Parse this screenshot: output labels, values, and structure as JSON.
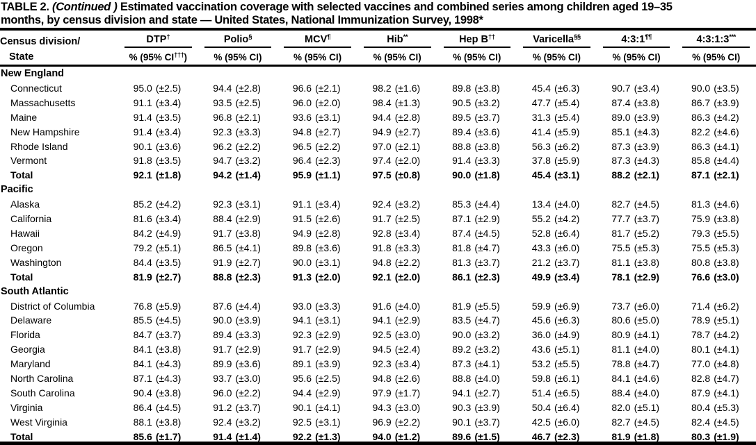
{
  "title": {
    "prefix": "TABLE 2. ",
    "continued": "(Continued )",
    "line1_rest": " Estimated vaccination coverage with selected vaccines and combined series among children aged 19–35",
    "line2": "months, by census division and state — United States, National Immunization Survey, 1998*"
  },
  "header": {
    "col1_line1": "Census division/",
    "col1_line2": "State",
    "columns": [
      {
        "label": "DTP",
        "sup": "†",
        "sub": "% (95% CI",
        "sub_sup": "†††",
        "sub_close": ")"
      },
      {
        "label": "Polio",
        "sup": "§",
        "sub": "% (95% CI",
        "sub_sup": "",
        "sub_close": ")"
      },
      {
        "label": "MCV",
        "sup": "¶",
        "sub": "% (95% CI",
        "sub_sup": "",
        "sub_close": ")"
      },
      {
        "label": "Hib",
        "sup": "**",
        "sub": "% (95% CI",
        "sub_sup": "",
        "sub_close": ")"
      },
      {
        "label": "Hep B",
        "sup": "††",
        "sub": "% (95% CI",
        "sub_sup": "",
        "sub_close": ")"
      },
      {
        "label": "Varicella",
        "sup": "§§",
        "sub": "% (95% CI",
        "sub_sup": "",
        "sub_close": ")"
      },
      {
        "label": "4:3:1",
        "sup": "¶¶",
        "sub": "% (95% CI",
        "sub_sup": "",
        "sub_close": ")"
      },
      {
        "label": "4:3:1:3",
        "sup": "***",
        "sub": "% (95% CI",
        "sub_sup": "",
        "sub_close": ")"
      }
    ]
  },
  "table": {
    "sections": [
      {
        "name": "New England",
        "rows": [
          {
            "state": "Connecticut",
            "total": false,
            "cells": [
              [
                "95.0",
                "(±2.5)"
              ],
              [
                "94.4",
                "(±2.8)"
              ],
              [
                "96.6",
                "(±2.1)"
              ],
              [
                "98.2",
                "(±1.6)"
              ],
              [
                "89.8",
                "(±3.8)"
              ],
              [
                "45.4",
                "(±6.3)"
              ],
              [
                "90.7",
                "(±3.4)"
              ],
              [
                "90.0",
                "(±3.5)"
              ]
            ]
          },
          {
            "state": "Massachusetts",
            "total": false,
            "cells": [
              [
                "91.1",
                "(±3.4)"
              ],
              [
                "93.5",
                "(±2.5)"
              ],
              [
                "96.0",
                "(±2.0)"
              ],
              [
                "98.4",
                "(±1.3)"
              ],
              [
                "90.5",
                "(±3.2)"
              ],
              [
                "47.7",
                "(±5.4)"
              ],
              [
                "87.4",
                "(±3.8)"
              ],
              [
                "86.7",
                "(±3.9)"
              ]
            ]
          },
          {
            "state": "Maine",
            "total": false,
            "cells": [
              [
                "91.4",
                "(±3.5)"
              ],
              [
                "96.8",
                "(±2.1)"
              ],
              [
                "93.6",
                "(±3.1)"
              ],
              [
                "94.4",
                "(±2.8)"
              ],
              [
                "89.5",
                "(±3.7)"
              ],
              [
                "31.3",
                "(±5.4)"
              ],
              [
                "89.0",
                "(±3.9)"
              ],
              [
                "86.3",
                "(±4.2)"
              ]
            ]
          },
          {
            "state": "New Hampshire",
            "total": false,
            "cells": [
              [
                "91.4",
                "(±3.4)"
              ],
              [
                "92.3",
                "(±3.3)"
              ],
              [
                "94.8",
                "(±2.7)"
              ],
              [
                "94.9",
                "(±2.7)"
              ],
              [
                "89.4",
                "(±3.6)"
              ],
              [
                "41.4",
                "(±5.9)"
              ],
              [
                "85.1",
                "(±4.3)"
              ],
              [
                "82.2",
                "(±4.6)"
              ]
            ]
          },
          {
            "state": "Rhode Island",
            "total": false,
            "cells": [
              [
                "90.1",
                "(±3.6)"
              ],
              [
                "96.2",
                "(±2.2)"
              ],
              [
                "96.5",
                "(±2.2)"
              ],
              [
                "97.0",
                "(±2.1)"
              ],
              [
                "88.8",
                "(±3.8)"
              ],
              [
                "56.3",
                "(±6.2)"
              ],
              [
                "87.3",
                "(±3.9)"
              ],
              [
                "86.3",
                "(±4.1)"
              ]
            ]
          },
          {
            "state": "Vermont",
            "total": false,
            "cells": [
              [
                "91.8",
                "(±3.5)"
              ],
              [
                "94.7",
                "(±3.2)"
              ],
              [
                "96.4",
                "(±2.3)"
              ],
              [
                "97.4",
                "(±2.0)"
              ],
              [
                "91.4",
                "(±3.3)"
              ],
              [
                "37.8",
                "(±5.9)"
              ],
              [
                "87.3",
                "(±4.3)"
              ],
              [
                "85.8",
                "(±4.4)"
              ]
            ]
          },
          {
            "state": "Total",
            "total": true,
            "cells": [
              [
                "92.1",
                "(±1.8)"
              ],
              [
                "94.2",
                "(±1.4)"
              ],
              [
                "95.9",
                "(±1.1)"
              ],
              [
                "97.5",
                "(±0.8)"
              ],
              [
                "90.0",
                "(±1.8)"
              ],
              [
                "45.4",
                "(±3.1)"
              ],
              [
                "88.2",
                "(±2.1)"
              ],
              [
                "87.1",
                "(±2.1)"
              ]
            ]
          }
        ]
      },
      {
        "name": "Pacific",
        "rows": [
          {
            "state": "Alaska",
            "total": false,
            "cells": [
              [
                "85.2",
                "(±4.2)"
              ],
              [
                "92.3",
                "(±3.1)"
              ],
              [
                "91.1",
                "(±3.4)"
              ],
              [
                "92.4",
                "(±3.2)"
              ],
              [
                "85.3",
                "(±4.4)"
              ],
              [
                "13.4",
                "(±4.0)"
              ],
              [
                "82.7",
                "(±4.5)"
              ],
              [
                "81.3",
                "(±4.6)"
              ]
            ]
          },
          {
            "state": "California",
            "total": false,
            "cells": [
              [
                "81.6",
                "(±3.4)"
              ],
              [
                "88.4",
                "(±2.9)"
              ],
              [
                "91.5",
                "(±2.6)"
              ],
              [
                "91.7",
                "(±2.5)"
              ],
              [
                "87.1",
                "(±2.9)"
              ],
              [
                "55.2",
                "(±4.2)"
              ],
              [
                "77.7",
                "(±3.7)"
              ],
              [
                "75.9",
                "(±3.8)"
              ]
            ]
          },
          {
            "state": "Hawaii",
            "total": false,
            "cells": [
              [
                "84.2",
                "(±4.9)"
              ],
              [
                "91.7",
                "(±3.8)"
              ],
              [
                "94.9",
                "(±2.8)"
              ],
              [
                "92.8",
                "(±3.4)"
              ],
              [
                "87.4",
                "(±4.5)"
              ],
              [
                "52.8",
                "(±6.4)"
              ],
              [
                "81.7",
                "(±5.2)"
              ],
              [
                "79.3",
                "(±5.5)"
              ]
            ]
          },
          {
            "state": "Oregon",
            "total": false,
            "cells": [
              [
                "79.2",
                "(±5.1)"
              ],
              [
                "86.5",
                "(±4.1)"
              ],
              [
                "89.8",
                "(±3.6)"
              ],
              [
                "91.8",
                "(±3.3)"
              ],
              [
                "81.8",
                "(±4.7)"
              ],
              [
                "43.3",
                "(±6.0)"
              ],
              [
                "75.5",
                "(±5.3)"
              ],
              [
                "75.5",
                "(±5.3)"
              ]
            ]
          },
          {
            "state": "Washington",
            "total": false,
            "cells": [
              [
                "84.4",
                "(±3.5)"
              ],
              [
                "91.9",
                "(±2.7)"
              ],
              [
                "90.0",
                "(±3.1)"
              ],
              [
                "94.8",
                "(±2.2)"
              ],
              [
                "81.3",
                "(±3.7)"
              ],
              [
                "21.2",
                "(±3.7)"
              ],
              [
                "81.1",
                "(±3.8)"
              ],
              [
                "80.8",
                "(±3.8)"
              ]
            ]
          },
          {
            "state": "Total",
            "total": true,
            "cells": [
              [
                "81.9",
                "(±2.7)"
              ],
              [
                "88.8",
                "(±2.3)"
              ],
              [
                "91.3",
                "(±2.0)"
              ],
              [
                "92.1",
                "(±2.0)"
              ],
              [
                "86.1",
                "(±2.3)"
              ],
              [
                "49.9",
                "(±3.4)"
              ],
              [
                "78.1",
                "(±2.9)"
              ],
              [
                "76.6",
                "(±3.0)"
              ]
            ]
          }
        ]
      },
      {
        "name": "South Atlantic",
        "rows": [
          {
            "state": "District of Columbia",
            "total": false,
            "cells": [
              [
                "76.8",
                "(±5.9)"
              ],
              [
                "87.6",
                "(±4.4)"
              ],
              [
                "93.0",
                "(±3.3)"
              ],
              [
                "91.6",
                "(±4.0)"
              ],
              [
                "81.9",
                "(±5.5)"
              ],
              [
                "59.9",
                "(±6.9)"
              ],
              [
                "73.7",
                "(±6.0)"
              ],
              [
                "71.4",
                "(±6.2)"
              ]
            ]
          },
          {
            "state": "Delaware",
            "total": false,
            "cells": [
              [
                "85.5",
                "(±4.5)"
              ],
              [
                "90.0",
                "(±3.9)"
              ],
              [
                "94.1",
                "(±3.1)"
              ],
              [
                "94.1",
                "(±2.9)"
              ],
              [
                "83.5",
                "(±4.7)"
              ],
              [
                "45.6",
                "(±6.3)"
              ],
              [
                "80.6",
                "(±5.0)"
              ],
              [
                "78.9",
                "(±5.1)"
              ]
            ]
          },
          {
            "state": "Florida",
            "total": false,
            "cells": [
              [
                "84.7",
                "(±3.7)"
              ],
              [
                "89.4",
                "(±3.3)"
              ],
              [
                "92.3",
                "(±2.9)"
              ],
              [
                "92.5",
                "(±3.0)"
              ],
              [
                "90.0",
                "(±3.2)"
              ],
              [
                "36.0",
                "(±4.9)"
              ],
              [
                "80.9",
                "(±4.1)"
              ],
              [
                "78.7",
                "(±4.2)"
              ]
            ]
          },
          {
            "state": "Georgia",
            "total": false,
            "cells": [
              [
                "84.1",
                "(±3.8)"
              ],
              [
                "91.7",
                "(±2.9)"
              ],
              [
                "91.7",
                "(±2.9)"
              ],
              [
                "94.5",
                "(±2.4)"
              ],
              [
                "89.2",
                "(±3.2)"
              ],
              [
                "43.6",
                "(±5.1)"
              ],
              [
                "81.1",
                "(±4.0)"
              ],
              [
                "80.1",
                "(±4.1)"
              ]
            ]
          },
          {
            "state": "Maryland",
            "total": false,
            "cells": [
              [
                "84.1",
                "(±4.3)"
              ],
              [
                "89.9",
                "(±3.6)"
              ],
              [
                "89.1",
                "(±3.9)"
              ],
              [
                "92.3",
                "(±3.4)"
              ],
              [
                "87.3",
                "(±4.1)"
              ],
              [
                "53.2",
                "(±5.5)"
              ],
              [
                "78.8",
                "(±4.7)"
              ],
              [
                "77.0",
                "(±4.8)"
              ]
            ]
          },
          {
            "state": "North Carolina",
            "total": false,
            "cells": [
              [
                "87.1",
                "(±4.3)"
              ],
              [
                "93.7",
                "(±3.0)"
              ],
              [
                "95.6",
                "(±2.5)"
              ],
              [
                "94.8",
                "(±2.6)"
              ],
              [
                "88.8",
                "(±4.0)"
              ],
              [
                "59.8",
                "(±6.1)"
              ],
              [
                "84.1",
                "(±4.6)"
              ],
              [
                "82.8",
                "(±4.7)"
              ]
            ]
          },
          {
            "state": "South Carolina",
            "total": false,
            "cells": [
              [
                "90.4",
                "(±3.8)"
              ],
              [
                "96.0",
                "(±2.2)"
              ],
              [
                "94.4",
                "(±2.9)"
              ],
              [
                "97.9",
                "(±1.7)"
              ],
              [
                "94.1",
                "(±2.7)"
              ],
              [
                "51.4",
                "(±6.5)"
              ],
              [
                "88.4",
                "(±4.0)"
              ],
              [
                "87.9",
                "(±4.1)"
              ]
            ]
          },
          {
            "state": "Virginia",
            "total": false,
            "cells": [
              [
                "86.4",
                "(±4.5)"
              ],
              [
                "91.2",
                "(±3.7)"
              ],
              [
                "90.1",
                "(±4.1)"
              ],
              [
                "94.3",
                "(±3.0)"
              ],
              [
                "90.3",
                "(±3.9)"
              ],
              [
                "50.4",
                "(±6.4)"
              ],
              [
                "82.0",
                "(±5.1)"
              ],
              [
                "80.4",
                "(±5.3)"
              ]
            ]
          },
          {
            "state": "West Virginia",
            "total": false,
            "cells": [
              [
                "88.1",
                "(±3.8)"
              ],
              [
                "92.4",
                "(±3.2)"
              ],
              [
                "92.5",
                "(±3.1)"
              ],
              [
                "96.9",
                "(±2.2)"
              ],
              [
                "90.1",
                "(±3.7)"
              ],
              [
                "42.5",
                "(±6.0)"
              ],
              [
                "82.7",
                "(±4.5)"
              ],
              [
                "82.4",
                "(±4.5)"
              ]
            ]
          },
          {
            "state": "Total",
            "total": true,
            "cells": [
              [
                "85.6",
                "(±1.7)"
              ],
              [
                "91.4",
                "(±1.4)"
              ],
              [
                "92.2",
                "(±1.3)"
              ],
              [
                "94.0",
                "(±1.2)"
              ],
              [
                "89.6",
                "(±1.5)"
              ],
              [
                "46.7",
                "(±2.3)"
              ],
              [
                "81.9",
                "(±1.8)"
              ],
              [
                "80.3",
                "(±1.9)"
              ]
            ]
          }
        ]
      }
    ]
  }
}
